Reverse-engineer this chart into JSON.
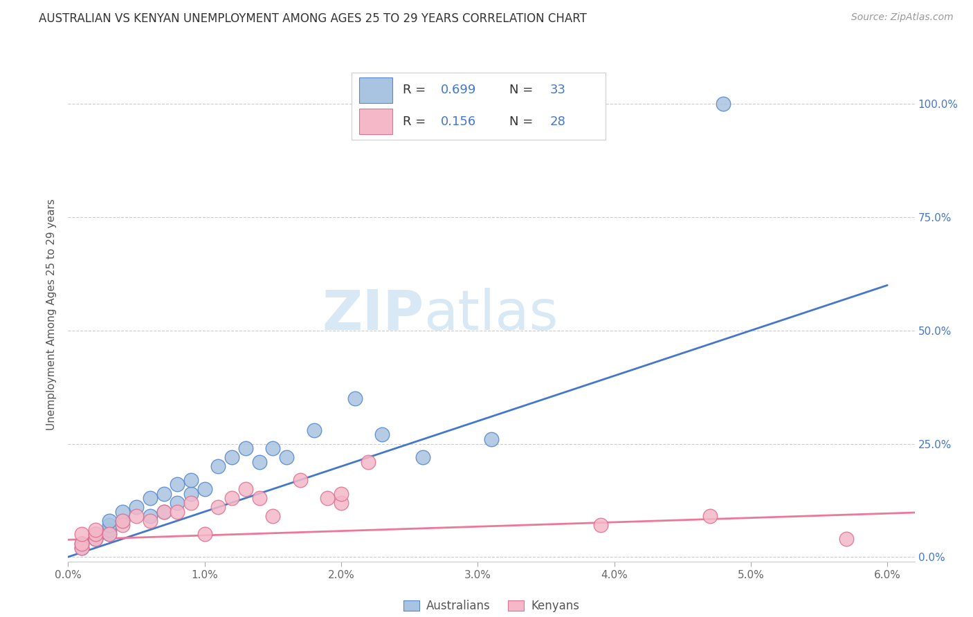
{
  "title": "AUSTRALIAN VS KENYAN UNEMPLOYMENT AMONG AGES 25 TO 29 YEARS CORRELATION CHART",
  "source": "Source: ZipAtlas.com",
  "ylabel": "Unemployment Among Ages 25 to 29 years",
  "xlim": [
    0.0,
    0.062
  ],
  "ylim": [
    -0.01,
    1.08
  ],
  "xtick_labels": [
    "0.0%",
    "1.0%",
    "2.0%",
    "3.0%",
    "4.0%",
    "5.0%",
    "6.0%"
  ],
  "xtick_vals": [
    0.0,
    0.01,
    0.02,
    0.03,
    0.04,
    0.05,
    0.06
  ],
  "ytick_vals": [
    0.0,
    0.25,
    0.5,
    0.75,
    1.0
  ],
  "ytick_right_labels": [
    "0.0%",
    "25.0%",
    "50.0%",
    "75.0%",
    "100.0%"
  ],
  "legend_R_blue": "0.699",
  "legend_N_blue": "33",
  "legend_R_pink": "0.156",
  "legend_N_pink": "28",
  "color_blue_fill": "#A8C4E0",
  "color_blue_edge": "#5588CC",
  "color_pink_fill": "#F4B8C8",
  "color_pink_edge": "#E07090",
  "color_line_blue": "#4477CC",
  "color_line_pink": "#EE7799",
  "watermark_zip": "ZIP",
  "watermark_atlas": "atlas",
  "blue_scatter_x": [
    0.001,
    0.001,
    0.002,
    0.002,
    0.002,
    0.003,
    0.003,
    0.003,
    0.003,
    0.004,
    0.004,
    0.005,
    0.006,
    0.006,
    0.007,
    0.007,
    0.008,
    0.008,
    0.009,
    0.009,
    0.01,
    0.011,
    0.012,
    0.013,
    0.014,
    0.015,
    0.016,
    0.018,
    0.021,
    0.023,
    0.026,
    0.031,
    0.048
  ],
  "blue_scatter_y": [
    0.02,
    0.03,
    0.04,
    0.05,
    0.05,
    0.05,
    0.06,
    0.07,
    0.08,
    0.08,
    0.1,
    0.11,
    0.09,
    0.13,
    0.1,
    0.14,
    0.12,
    0.16,
    0.14,
    0.17,
    0.15,
    0.2,
    0.22,
    0.24,
    0.21,
    0.24,
    0.22,
    0.28,
    0.35,
    0.27,
    0.22,
    0.26,
    1.0
  ],
  "pink_scatter_x": [
    0.001,
    0.001,
    0.001,
    0.002,
    0.002,
    0.002,
    0.003,
    0.004,
    0.004,
    0.005,
    0.006,
    0.007,
    0.008,
    0.009,
    0.01,
    0.011,
    0.012,
    0.013,
    0.014,
    0.015,
    0.017,
    0.019,
    0.02,
    0.02,
    0.022,
    0.039,
    0.047,
    0.057
  ],
  "pink_scatter_y": [
    0.02,
    0.03,
    0.05,
    0.04,
    0.05,
    0.06,
    0.05,
    0.07,
    0.08,
    0.09,
    0.08,
    0.1,
    0.1,
    0.12,
    0.05,
    0.11,
    0.13,
    0.15,
    0.13,
    0.09,
    0.17,
    0.13,
    0.12,
    0.14,
    0.21,
    0.07,
    0.09,
    0.04
  ],
  "blue_line_x": [
    0.0,
    0.06
  ],
  "blue_line_y": [
    0.0,
    0.6
  ],
  "pink_line_x": [
    0.0,
    0.062
  ],
  "pink_line_y": [
    0.038,
    0.098
  ],
  "background_color": "#FFFFFF",
  "grid_color": "#CCCCCC",
  "title_fontsize": 12,
  "axis_label_fontsize": 11,
  "tick_fontsize": 11
}
